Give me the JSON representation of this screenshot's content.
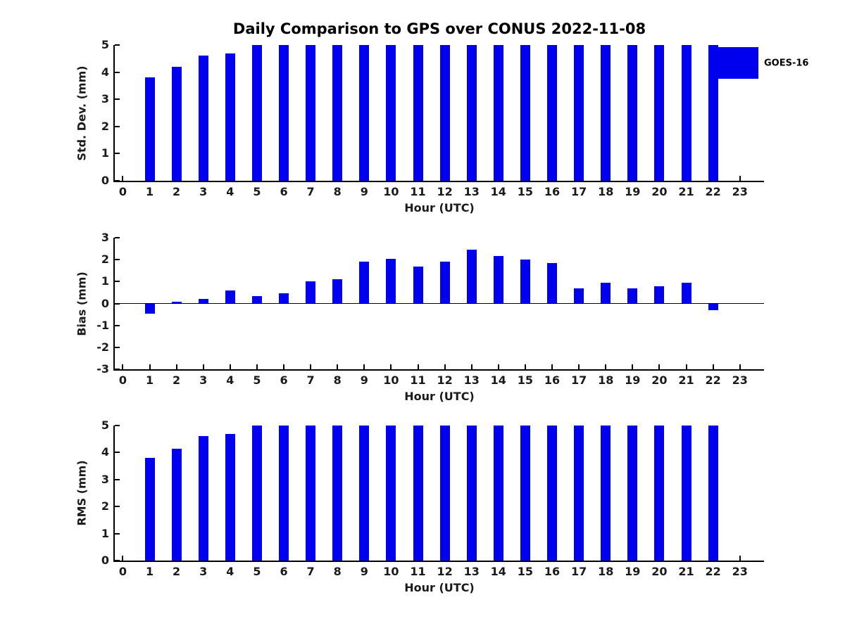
{
  "title": "Daily Comparison to GPS over CONUS 2022-11-08",
  "legend": {
    "label": "GOES-16",
    "swatch_color": "#0000ee",
    "position": "top-right"
  },
  "colors": {
    "bar": "#0000ee",
    "axis": "#000000",
    "tick_text": "#1a1a1a",
    "background": "#ffffff"
  },
  "chart_data": [
    {
      "type": "bar",
      "name": "std-dev-by-hour",
      "title": "Daily Comparison to GPS over CONUS 2022-11-08",
      "ylabel": "Std. Dev. (mm)",
      "xlabel": "Hour (UTC)",
      "ylim": [
        0,
        5
      ],
      "yticks": [
        0,
        1,
        2,
        3,
        4,
        5
      ],
      "grid": false,
      "legend_entries": [
        "GOES-16"
      ],
      "categories": [
        0,
        1,
        2,
        3,
        4,
        5,
        6,
        7,
        8,
        9,
        10,
        11,
        12,
        13,
        14,
        15,
        16,
        17,
        18,
        19,
        20,
        21,
        22,
        23
      ],
      "values": [
        null,
        3.8,
        4.2,
        4.6,
        4.7,
        5,
        5,
        5,
        5,
        5,
        5,
        5,
        5,
        5,
        5,
        5,
        5,
        5,
        5,
        5,
        5,
        5,
        5,
        null
      ]
    },
    {
      "type": "bar",
      "name": "bias-by-hour",
      "ylabel": "Bias (mm)",
      "xlabel": "Hour (UTC)",
      "ylim": [
        -3,
        3
      ],
      "yticks": [
        -3,
        -2,
        -1,
        0,
        1,
        2,
        3
      ],
      "zero_line": true,
      "grid": false,
      "categories": [
        0,
        1,
        2,
        3,
        4,
        5,
        6,
        7,
        8,
        9,
        10,
        11,
        12,
        13,
        14,
        15,
        16,
        17,
        18,
        19,
        20,
        21,
        22,
        23
      ],
      "values": [
        null,
        -0.45,
        0.07,
        0.2,
        0.6,
        0.35,
        0.47,
        1.0,
        1.1,
        1.9,
        2.05,
        1.7,
        1.9,
        2.45,
        2.15,
        2.0,
        1.85,
        0.7,
        0.95,
        0.7,
        0.8,
        0.95,
        -0.3,
        null
      ]
    },
    {
      "type": "bar",
      "name": "rms-by-hour",
      "ylabel": "RMS (mm)",
      "xlabel": "Hour (UTC)",
      "ylim": [
        0,
        5
      ],
      "yticks": [
        0,
        1,
        2,
        3,
        4,
        5
      ],
      "grid": false,
      "categories": [
        0,
        1,
        2,
        3,
        4,
        5,
        6,
        7,
        8,
        9,
        10,
        11,
        12,
        13,
        14,
        15,
        16,
        17,
        18,
        19,
        20,
        21,
        22,
        23
      ],
      "values": [
        null,
        3.8,
        4.15,
        4.6,
        4.7,
        5,
        5,
        5,
        5,
        5,
        5,
        5,
        5,
        5,
        5,
        5,
        5,
        5,
        5,
        5,
        5,
        5,
        5,
        null
      ]
    }
  ]
}
